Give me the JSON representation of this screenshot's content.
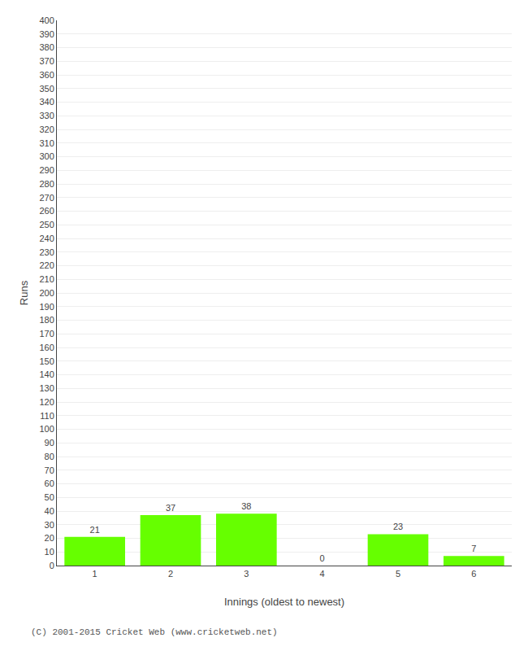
{
  "chart_data": {
    "type": "bar",
    "categories": [
      "1",
      "2",
      "3",
      "4",
      "5",
      "6"
    ],
    "values": [
      21,
      37,
      38,
      0,
      23,
      7
    ],
    "color": "#66ff00",
    "xlabel": "Innings (oldest to newest)",
    "ylabel": "Runs",
    "ylim": [
      0,
      400
    ],
    "yticks": [
      0,
      10,
      20,
      30,
      40,
      50,
      60,
      70,
      80,
      90,
      100,
      110,
      120,
      130,
      140,
      150,
      160,
      170,
      180,
      190,
      200,
      210,
      220,
      230,
      240,
      250,
      260,
      270,
      280,
      290,
      300,
      310,
      320,
      330,
      340,
      350,
      360,
      370,
      380,
      390,
      400
    ],
    "grid": true,
    "data_labels": true,
    "annotations": [
      "(C) 2001-2015 Cricket Web (www.cricketweb.net)"
    ]
  }
}
